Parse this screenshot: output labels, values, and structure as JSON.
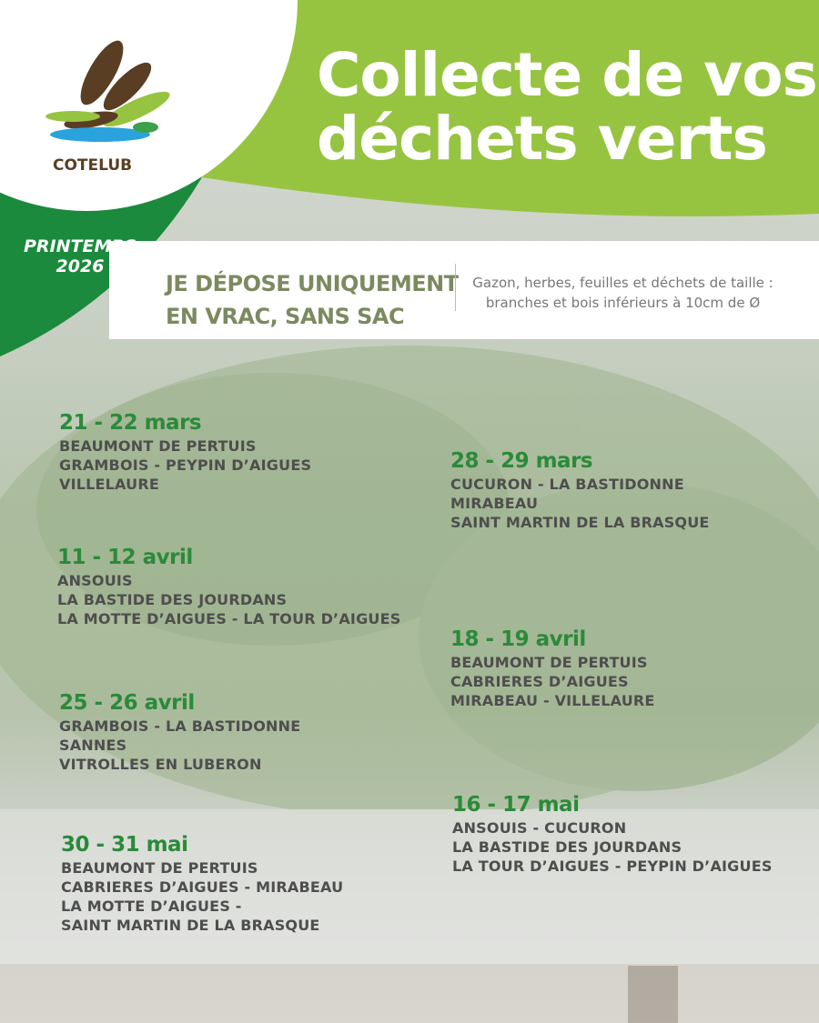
{
  "colors": {
    "light_green": "#96c441",
    "dark_green": "#1b8a3c",
    "date_green": "#2b8a3a",
    "brown": "#5a3e23",
    "blue": "#2aa3dc"
  },
  "logo": {
    "name": "COTELUB"
  },
  "title": {
    "line1": "Collecte de vos",
    "line2": "déchets verts"
  },
  "season": {
    "line1": "PRINTEMPS",
    "line2": "2026"
  },
  "notice": {
    "rule_line1": "JE DÉPOSE UNIQUEMENT",
    "rule_line2": "EN VRAC, SANS SAC",
    "desc_line1": "Gazon, herbes, feuilles et déchets de taille :",
    "desc_line2": "branches et bois inférieurs à 10cm de Ø"
  },
  "collections": [
    {
      "date": "21 - 22 mars",
      "places": [
        "BEAUMONT DE PERTUIS",
        "GRAMBOIS - PEYPIN D’AIGUES",
        "VILLELAURE"
      ]
    },
    {
      "date": "28 - 29 mars",
      "places": [
        "CUCURON - LA BASTIDONNE",
        "MIRABEAU",
        "SAINT MARTIN DE LA BRASQUE"
      ]
    },
    {
      "date": "11 - 12 avril",
      "places": [
        "ANSOUIS",
        "LA BASTIDE DES JOURDANS",
        "LA MOTTE D’AIGUES - LA TOUR D’AIGUES"
      ]
    },
    {
      "date": "18 - 19 avril",
      "places": [
        "BEAUMONT DE PERTUIS",
        "CABRIERES D’AIGUES",
        "MIRABEAU - VILLELAURE"
      ]
    },
    {
      "date": "25 - 26 avril",
      "places": [
        "GRAMBOIS - LA BASTIDONNE",
        "SANNES",
        "VITROLLES EN LUBERON"
      ]
    },
    {
      "date": "16 - 17 mai",
      "places": [
        "ANSOUIS - CUCURON",
        "LA BASTIDE DES JOURDANS",
        "LA TOUR D’AIGUES - PEYPIN D’AIGUES"
      ]
    },
    {
      "date": "30 - 31 mai",
      "places": [
        "BEAUMONT DE PERTUIS",
        "CABRIERES D’AIGUES - MIRABEAU",
        "LA MOTTE D’AIGUES -",
        "SAINT MARTIN DE LA BRASQUE"
      ]
    }
  ]
}
